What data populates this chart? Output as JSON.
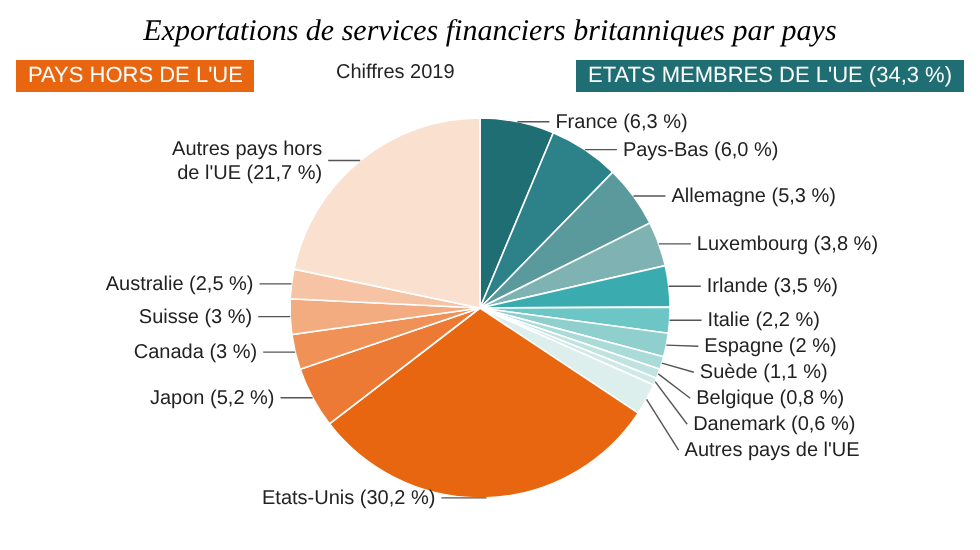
{
  "chart_data": {
    "type": "pie",
    "title": "Exportations de services financiers britanniques par pays",
    "annotations": [
      "PAYS HORS DE L'UE",
      "Chiffres 2019",
      "ETATS MEMBRES DE L'UE (34,3 %)"
    ],
    "categories": [
      "France (6,3 %)",
      "Pays-Bas (6,0 %)",
      "Allemagne (5,3 %)",
      "Luxembourg (3,8 %)",
      "Irlande (3,5 %)",
      "Italie (2,2 %)",
      "Espagne (2 %)",
      "Suède (1,1 %)",
      "Belgique (0,8 %)",
      "Danemark (0,6 %)",
      "Autres pays de l'UE",
      "Etats-Unis (30,2 %)",
      "Japon (5,2 %)",
      "Canada (3 %)",
      "Suisse (3 %)",
      "Australie (2,5 %)",
      "Autres pays hors de l'UE (21,7 %)"
    ],
    "values": [
      6.3,
      6.0,
      5.3,
      3.8,
      3.5,
      2.2,
      2,
      1.1,
      0.8,
      0.6,
      2.7,
      30.2,
      5.2,
      3,
      3,
      2.5,
      21.7
    ],
    "colors": [
      "#1f6e73",
      "#2d8189",
      "#5a9a9c",
      "#7fb3b3",
      "#3aacb0",
      "#6cc6c6",
      "#8fd0cf",
      "#a9dbd9",
      "#bfe3e1",
      "#cfe9e7",
      "#dcefed",
      "#e8660f",
      "#ec7a35",
      "#f09158",
      "#f3ab80",
      "#f6c3a4",
      "#fae0cf"
    ]
  }
}
